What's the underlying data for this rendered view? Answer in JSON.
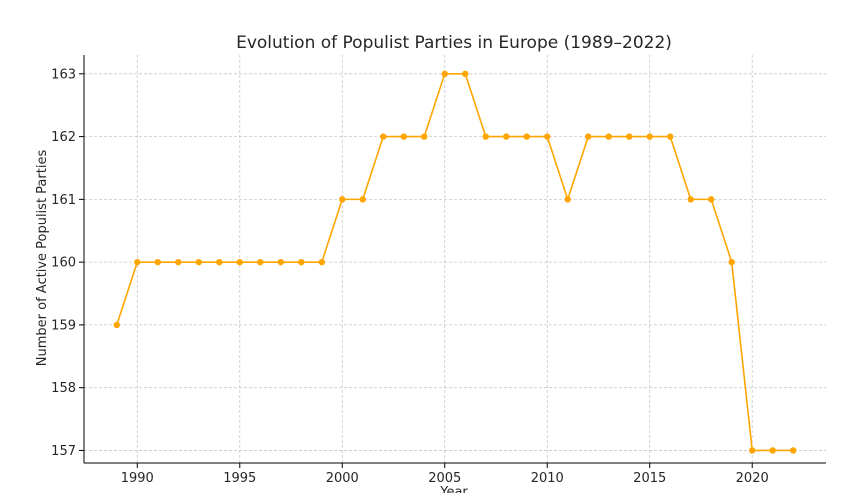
{
  "chart_data": {
    "type": "line",
    "title": "Evolution of Populist Parties in Europe (1989–2022)",
    "xlabel": "Year",
    "ylabel": "Number of Active Populist Parties",
    "xlim": [
      1987.4,
      2023.6
    ],
    "ylim": [
      156.8,
      163.3
    ],
    "xticks": [
      1990,
      1995,
      2000,
      2005,
      2010,
      2015,
      2020
    ],
    "yticks": [
      157,
      158,
      159,
      160,
      161,
      162,
      163
    ],
    "grid": true,
    "legend": "none",
    "color": "#FFA500",
    "series": [
      {
        "x": [
          1989,
          1990,
          1991,
          1992,
          1993,
          1994,
          1995,
          1996,
          1997,
          1998,
          1999,
          2000,
          2001,
          2002,
          2003,
          2004,
          2005,
          2006,
          2007,
          2008,
          2009,
          2010,
          2011,
          2012,
          2013,
          2014,
          2015,
          2016,
          2017,
          2018,
          2019,
          2020,
          2021,
          2022
        ],
        "values": [
          159,
          160,
          160,
          160,
          160,
          160,
          160,
          160,
          160,
          160,
          160,
          161,
          161,
          162,
          162,
          162,
          163,
          163,
          162,
          162,
          162,
          162,
          161,
          162,
          162,
          162,
          162,
          162,
          161,
          161,
          160,
          157,
          157,
          157
        ]
      }
    ]
  }
}
